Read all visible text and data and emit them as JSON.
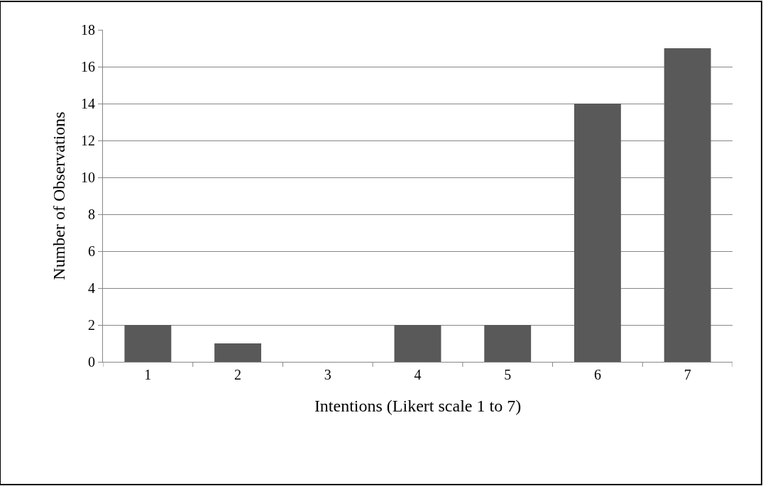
{
  "chart_data": {
    "type": "bar",
    "xlabel": "Intentions (Likert scale 1 to 7)",
    "ylabel": "Number of Observations",
    "categories": [
      "1",
      "2",
      "3",
      "4",
      "5",
      "6",
      "7"
    ],
    "values": [
      2,
      1,
      0,
      2,
      2,
      14,
      17
    ],
    "color": "#595959",
    "ylim": [
      0,
      18
    ],
    "yticks": [
      0,
      2,
      4,
      6,
      8,
      10,
      12,
      14,
      16,
      18
    ],
    "grid": "y",
    "legend": false
  }
}
